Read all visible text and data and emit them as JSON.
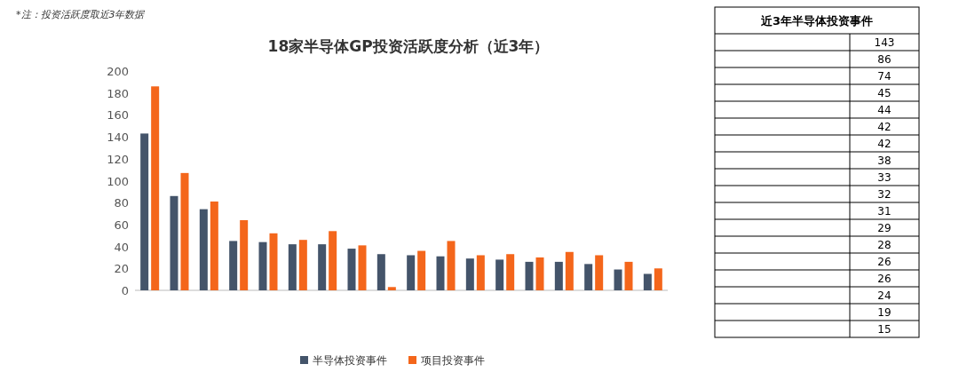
{
  "chart_data": [
    {
      "type": "bar",
      "title": "18家半导体GP投资活跃度分析（近3年）",
      "categories": [
        null,
        null,
        null,
        null,
        null,
        null,
        null,
        null,
        null,
        null,
        null,
        null,
        null,
        null,
        null,
        null,
        null,
        null
      ],
      "series": [
        {
          "name": "半导体投资事件",
          "color": "#44546a",
          "values": [
            143,
            86,
            74,
            45,
            44,
            42,
            42,
            38,
            33,
            32,
            31,
            29,
            28,
            26,
            26,
            24,
            19,
            15
          ]
        },
        {
          "name": "项目投资事件",
          "color": "#f4661b",
          "values": [
            186,
            107,
            81,
            64,
            52,
            46,
            54,
            41,
            3,
            36,
            45,
            32,
            33,
            30,
            35,
            32,
            26,
            20
          ]
        }
      ],
      "ylim": [
        0,
        200
      ],
      "yticks": [
        0,
        20,
        40,
        60,
        80,
        100,
        120,
        140,
        160,
        180,
        200
      ],
      "legend": "bottom",
      "annotations": [
        "*注：投资活跃度取近3年数据"
      ]
    },
    {
      "type": "other",
      "title": "近3年半导体投资事件",
      "categories": [
        null,
        null,
        null,
        null,
        null,
        null,
        null,
        null,
        null,
        null,
        null,
        null,
        null,
        null,
        null,
        null,
        null,
        null
      ],
      "values": [
        143,
        86,
        74,
        45,
        44,
        42,
        42,
        38,
        33,
        32,
        31,
        29,
        28,
        26,
        26,
        24,
        19,
        15
      ],
      "data_labels": true
    }
  ]
}
